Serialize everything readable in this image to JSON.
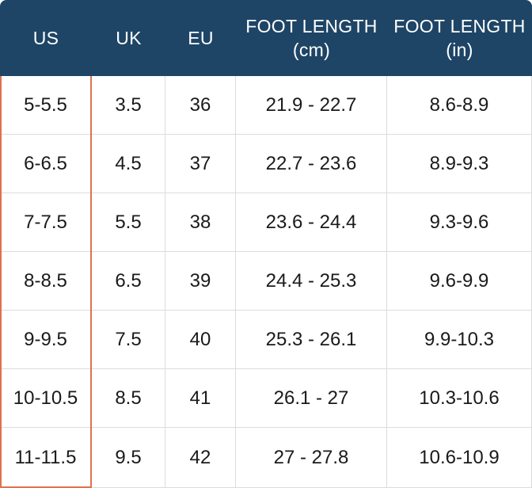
{
  "table": {
    "headers": [
      {
        "line1": "US",
        "line2": ""
      },
      {
        "line1": "UK",
        "line2": ""
      },
      {
        "line1": "EU",
        "line2": ""
      },
      {
        "line1": "FOOT LENGTH",
        "line2": "(cm)"
      },
      {
        "line1": "FOOT LENGTH",
        "line2": "(in)"
      }
    ],
    "rows": [
      [
        "5-5.5",
        "3.5",
        "36",
        "21.9 - 22.7",
        "8.6-8.9"
      ],
      [
        "6-6.5",
        "4.5",
        "37",
        "22.7 - 23.6",
        "8.9-9.3"
      ],
      [
        "7-7.5",
        "5.5",
        "38",
        "23.6 - 24.4",
        "9.3-9.6"
      ],
      [
        "8-8.5",
        "6.5",
        "39",
        "24.4 - 25.3",
        "9.6-9.9"
      ],
      [
        "9-9.5",
        "7.5",
        "40",
        "25.3 - 26.1",
        "9.9-10.3"
      ],
      [
        "10-10.5",
        "8.5",
        "41",
        "26.1 - 27",
        "10.3-10.6"
      ],
      [
        "11-11.5",
        "9.5",
        "42",
        "27 - 27.8",
        "10.6-10.9"
      ]
    ]
  },
  "colors": {
    "header_bg": "#1e4566",
    "header_text": "#ffffff",
    "highlight_border": "#e0714f",
    "grid_line": "#dcdcdc"
  }
}
